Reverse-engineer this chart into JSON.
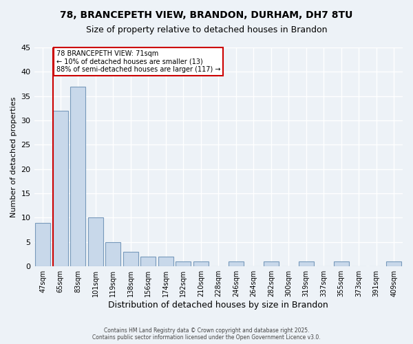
{
  "title_line1": "78, BRANCEPETH VIEW, BRANDON, DURHAM, DH7 8TU",
  "title_line2": "Size of property relative to detached houses in Brandon",
  "xlabel": "Distribution of detached houses by size in Brandon",
  "ylabel": "Number of detached properties",
  "categories": [
    "47sqm",
    "65sqm",
    "83sqm",
    "101sqm",
    "119sqm",
    "138sqm",
    "156sqm",
    "174sqm",
    "192sqm",
    "210sqm",
    "228sqm",
    "246sqm",
    "264sqm",
    "282sqm",
    "300sqm",
    "319sqm",
    "337sqm",
    "355sqm",
    "373sqm",
    "391sqm",
    "409sqm"
  ],
  "values": [
    9,
    32,
    37,
    10,
    5,
    3,
    2,
    2,
    1,
    1,
    0,
    1,
    0,
    1,
    0,
    1,
    0,
    1,
    0,
    0,
    1
  ],
  "bar_color": "#c8d8ea",
  "bar_edge_color": "#7799bb",
  "vline_x_index": 1,
  "vline_color": "#cc0000",
  "ylim": [
    0,
    45
  ],
  "yticks": [
    0,
    5,
    10,
    15,
    20,
    25,
    30,
    35,
    40,
    45
  ],
  "annotation_text": "78 BRANCEPETH VIEW: 71sqm\n← 10% of detached houses are smaller (13)\n88% of semi-detached houses are larger (117) →",
  "annotation_box_facecolor": "#ffffff",
  "annotation_box_edgecolor": "#cc0000",
  "footer_text": "Contains HM Land Registry data © Crown copyright and database right 2025.\nContains public sector information licensed under the Open Government Licence v3.0.",
  "background_color": "#edf2f7",
  "grid_color": "#ffffff",
  "title_fontsize": 10,
  "subtitle_fontsize": 9,
  "ylabel_fontsize": 8,
  "xlabel_fontsize": 9,
  "tick_fontsize": 7
}
